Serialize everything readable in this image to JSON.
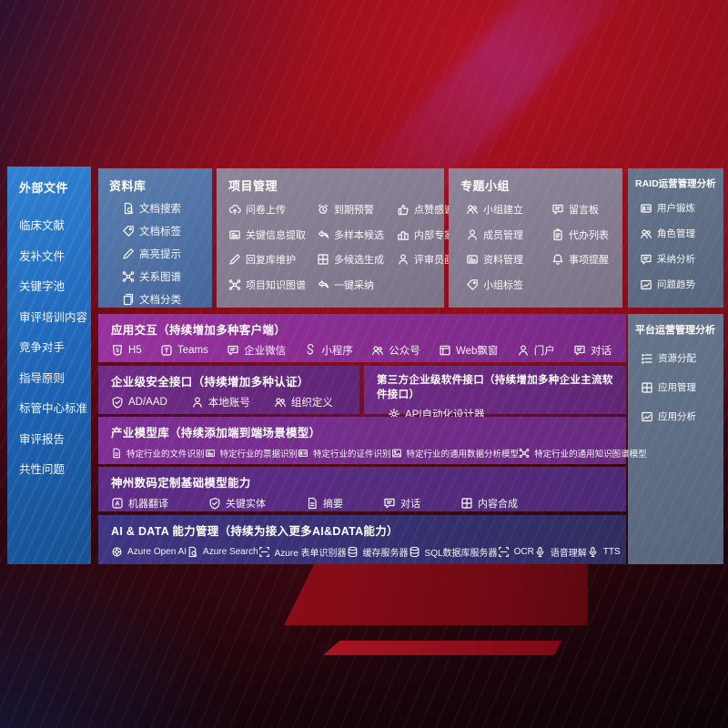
{
  "colors": {
    "background_red": "#970f1e",
    "sidebar_blue": "#1d63b4",
    "library_blue": "#44669c",
    "panel_gray": "#8d8599",
    "panel_slate": "#66758c",
    "band_magenta": "#8a2e93",
    "band_purple": "#6f2c87",
    "band_violet": "#5f2d88",
    "band_indigo": "#3f3583",
    "text": "#ffffff"
  },
  "sidebar": {
    "title": "外部文件",
    "items": [
      {
        "label": "临床文献"
      },
      {
        "label": "发补文件"
      },
      {
        "label": "关键字池"
      },
      {
        "label": "审评培训内容"
      },
      {
        "label": "竞争对手"
      },
      {
        "label": "指导原则"
      },
      {
        "label": "标管中心标准"
      },
      {
        "label": "审评报告"
      },
      {
        "label": "共性问题"
      }
    ]
  },
  "library": {
    "title": "资料库",
    "items": [
      {
        "icon": "doc-search",
        "label": "文档搜索"
      },
      {
        "icon": "doc-tag",
        "label": "文档标签"
      },
      {
        "icon": "highlight",
        "label": "高亮提示"
      },
      {
        "icon": "relation-graph",
        "label": "关系图谱"
      },
      {
        "icon": "doc-category",
        "label": "文档分类"
      }
    ]
  },
  "project": {
    "title": "项目管理",
    "items": [
      {
        "icon": "cloud-upload",
        "label": "问卷上传"
      },
      {
        "icon": "alarm",
        "label": "到期预警"
      },
      {
        "icon": "thumb-up",
        "label": "点赞感谢"
      },
      {
        "icon": "key-info-extract",
        "label": "关键信息提取"
      },
      {
        "icon": "multi-sample",
        "label": "多样本候选"
      },
      {
        "icon": "expert-rank",
        "label": "内部专家排名"
      },
      {
        "icon": "reply-maintain",
        "label": "回复库维护"
      },
      {
        "icon": "multi-candidate",
        "label": "多候选生成"
      },
      {
        "icon": "reviewer-profile",
        "label": "评审员画像"
      },
      {
        "icon": "knowledge-graph",
        "label": "项目知识图谱"
      },
      {
        "icon": "one-click-adopt",
        "label": "一键采纳"
      }
    ]
  },
  "group": {
    "title": "专题小组",
    "items": [
      {
        "icon": "group-create",
        "label": "小组建立"
      },
      {
        "icon": "bbs",
        "label": "留言板"
      },
      {
        "icon": "member-manage",
        "label": "成员管理"
      },
      {
        "icon": "todo-list",
        "label": "代办列表"
      },
      {
        "icon": "material-manage",
        "label": "资料管理"
      },
      {
        "icon": "reminder",
        "label": "事项提醒"
      },
      {
        "icon": "group-tag",
        "label": "小组标签"
      }
    ]
  },
  "raid": {
    "title": "RAID运营管理分析",
    "items": [
      {
        "icon": "user-card",
        "label": "用户锻炼"
      },
      {
        "icon": "role-manage",
        "label": "角色管理"
      },
      {
        "icon": "adopt-analysis",
        "label": "采纳分析"
      },
      {
        "icon": "issue-trend",
        "label": "问题趋势"
      }
    ]
  },
  "platform": {
    "title": "平台运营管理分析",
    "items": [
      {
        "icon": "resource-allocate",
        "label": "资源分配"
      },
      {
        "icon": "app-manage",
        "label": "应用管理"
      },
      {
        "icon": "app-analysis",
        "label": "应用分析"
      }
    ]
  },
  "bands": {
    "interaction": {
      "title": "应用交互（持续增加多种客户端）",
      "items": [
        {
          "icon": "html5",
          "label": "H5"
        },
        {
          "icon": "teams",
          "label": "Teams"
        },
        {
          "icon": "wechat-work",
          "label": "企业微信"
        },
        {
          "icon": "mini-program",
          "label": "小程序"
        },
        {
          "icon": "official-account",
          "label": "公众号"
        },
        {
          "icon": "web-widget",
          "label": "Web飘窗"
        },
        {
          "icon": "portal",
          "label": "门户"
        },
        {
          "icon": "dialog",
          "label": "对话"
        }
      ]
    },
    "security": {
      "title": "企业级安全接口（持续增加多种认证）",
      "items": [
        {
          "icon": "azure-ad",
          "label": "AD/AAD"
        },
        {
          "icon": "local-account",
          "label": "本地账号"
        },
        {
          "icon": "org-define",
          "label": "组织定义"
        }
      ]
    },
    "thirdparty": {
      "title": "第三方企业级软件接口（持续增加多种企业主流软件接口）",
      "items": [
        {
          "icon": "api-designer",
          "label": "API自动化设计器"
        }
      ]
    },
    "industry": {
      "title": "产业模型库（持续添加端到端场景模型）",
      "items": [
        {
          "icon": "file-recog",
          "label": "特定行业的文件识别"
        },
        {
          "icon": "receipt-recog",
          "label": "特定行业的票据识别"
        },
        {
          "icon": "cert-recog",
          "label": "特定行业的证件识别"
        },
        {
          "icon": "data-analysis-model",
          "label": "特定行业的通用数据分析模型"
        },
        {
          "icon": "knowledge-graph-model",
          "label": "特定行业的通用知识图谱模型"
        }
      ]
    },
    "basemodel": {
      "title": "神州数码定制基础模型能力",
      "items": [
        {
          "icon": "translate",
          "label": "机器翻译"
        },
        {
          "icon": "key-entity",
          "label": "关键实体"
        },
        {
          "icon": "summary",
          "label": "摘要"
        },
        {
          "icon": "dialog",
          "label": "对话"
        },
        {
          "icon": "compose",
          "label": "内容合成"
        }
      ]
    },
    "aidata": {
      "title": "AI & DATA 能力管理（持续为接入更多AI&DATA能力）",
      "items": [
        {
          "icon": "azure-openai",
          "label": "Azure Open AI"
        },
        {
          "icon": "azure-search",
          "label": "Azure Search"
        },
        {
          "icon": "form-recognizer",
          "label": "Azure 表单识别器"
        },
        {
          "icon": "cache-server",
          "label": "缓存服务器"
        },
        {
          "icon": "sql-server",
          "label": "SQL数据库服务器"
        },
        {
          "icon": "ocr",
          "label": "OCR"
        },
        {
          "icon": "speech",
          "label": "语音理解"
        },
        {
          "icon": "tts",
          "label": "TTS"
        }
      ]
    }
  }
}
